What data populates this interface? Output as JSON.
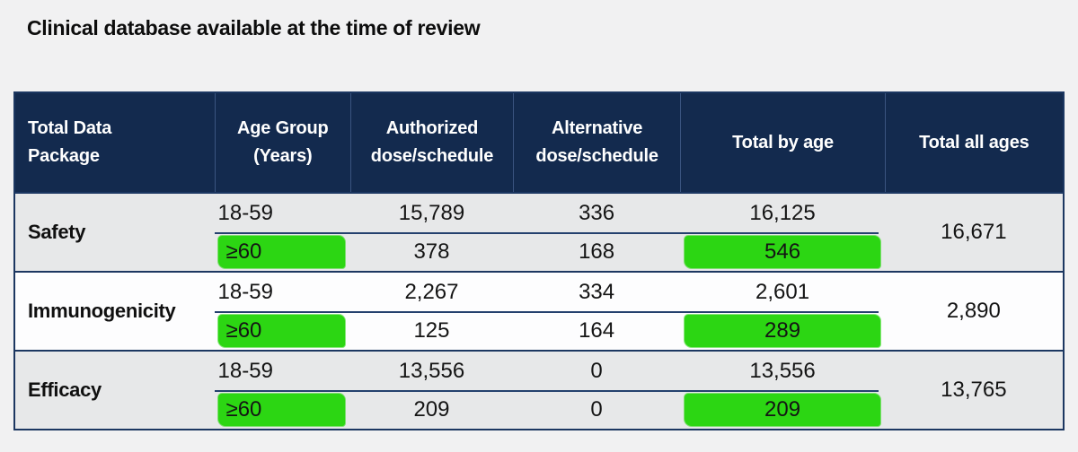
{
  "page": {
    "title": "Clinical database available at the time of review"
  },
  "colors": {
    "page_background": "#f1f1f2",
    "header_bg": "#132a4e",
    "header_text": "#ffffff",
    "band_gray": "#e7e8e9",
    "band_white": "#fdfdfe",
    "border_navy": "#1c3761",
    "subrow_divider_navy": "#24416e",
    "highlight_green": "#2cd613",
    "body_text": "#141414"
  },
  "table": {
    "header": {
      "col1_line1": "Total Data",
      "col1_line2": "Package",
      "col2_line1": "Age Group",
      "col2_line2": "(Years)",
      "col3_line1": "Authorized",
      "col3_line2": "dose/schedule",
      "col4_line1": "Alternative",
      "col4_line2": "dose/schedule",
      "col5": "Total by age",
      "col6": "Total all ages"
    },
    "rows": [
      {
        "package": "Safety",
        "total_all_ages": "16,671",
        "sub": [
          {
            "age": "18-59",
            "authorized": "15,789",
            "alternative": "336",
            "total_by_age": "16,125",
            "highlight": false
          },
          {
            "age": "≥60",
            "authorized": "378",
            "alternative": "168",
            "total_by_age": "546",
            "highlight": true
          }
        ]
      },
      {
        "package": "Immunogenicity",
        "total_all_ages": "2,890",
        "sub": [
          {
            "age": "18-59",
            "authorized": "2,267",
            "alternative": "334",
            "total_by_age": "2,601",
            "highlight": false
          },
          {
            "age": "≥60",
            "authorized": "125",
            "alternative": "164",
            "total_by_age": "289",
            "highlight": true
          }
        ]
      },
      {
        "package": "Efficacy",
        "total_all_ages": "13,765",
        "sub": [
          {
            "age": "18-59",
            "authorized": "13,556",
            "alternative": "0",
            "total_by_age": "13,556",
            "highlight": false
          },
          {
            "age": "≥60",
            "authorized": "209",
            "alternative": "0",
            "total_by_age": "209",
            "highlight": true
          }
        ]
      }
    ]
  },
  "chart_data": {
    "type": "table",
    "title": "Clinical database available at the time of review",
    "columns": [
      "Total Data Package",
      "Age Group (Years)",
      "Authorized dose/schedule",
      "Alternative dose/schedule",
      "Total by age",
      "Total all ages"
    ],
    "rows": [
      [
        "Safety",
        "18-59",
        15789,
        336,
        16125,
        16671
      ],
      [
        "Safety",
        "≥60",
        378,
        168,
        546,
        16671
      ],
      [
        "Immunogenicity",
        "18-59",
        2267,
        334,
        2601,
        2890
      ],
      [
        "Immunogenicity",
        "≥60",
        125,
        164,
        289,
        2890
      ],
      [
        "Efficacy",
        "18-59",
        13556,
        0,
        13556,
        13765
      ],
      [
        "Efficacy",
        "≥60",
        209,
        0,
        209,
        13765
      ]
    ]
  }
}
